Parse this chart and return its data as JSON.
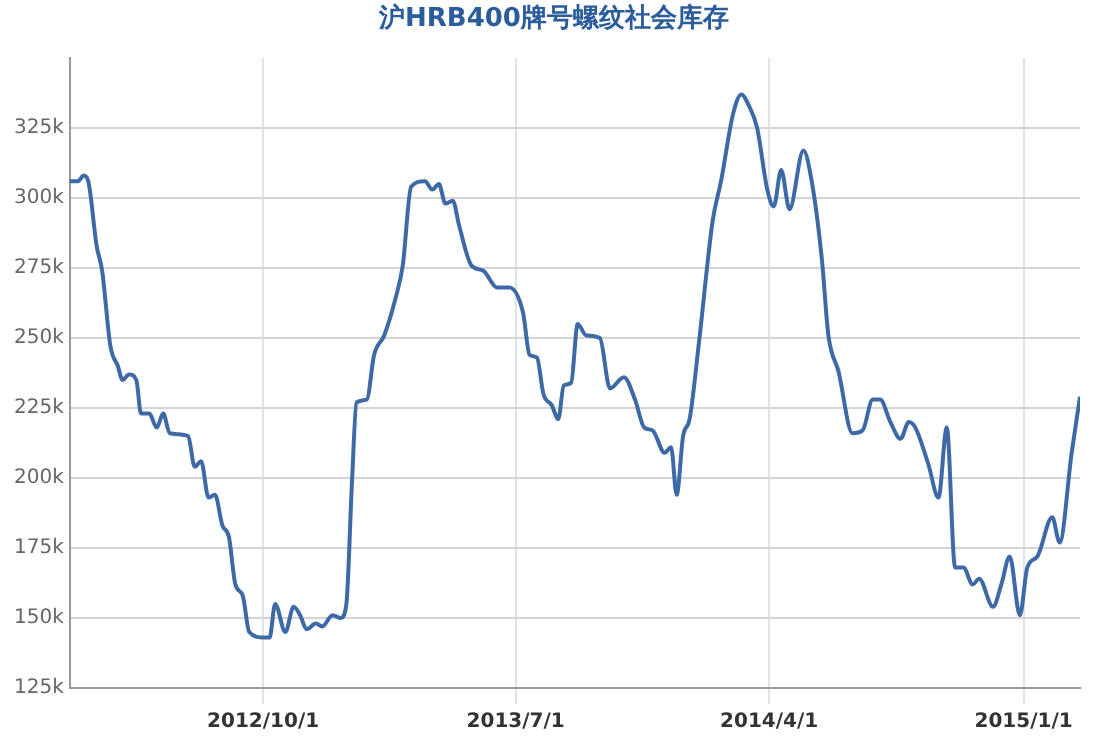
{
  "chart_data": {
    "type": "line",
    "title": "沪HRB400牌号螺纹社会库存",
    "x": [
      "2012-03-06",
      "2012-03-15",
      "2012-03-21",
      "2012-03-26",
      "2012-04-04",
      "2012-04-10",
      "2012-04-19",
      "2012-04-27",
      "2012-05-02",
      "2012-05-09",
      "2012-05-17",
      "2012-05-22",
      "2012-05-31",
      "2012-06-08",
      "2012-06-15",
      "2012-06-22",
      "2012-07-12",
      "2012-07-19",
      "2012-07-26",
      "2012-08-03",
      "2012-08-10",
      "2012-08-18",
      "2012-08-25",
      "2012-09-01",
      "2012-09-09",
      "2012-09-16",
      "2012-10-02",
      "2012-10-08",
      "2012-10-14",
      "2012-10-25",
      "2012-11-03",
      "2012-11-10",
      "2012-11-17",
      "2012-11-27",
      "2012-12-04",
      "2012-12-15",
      "2012-12-24",
      "2012-12-30",
      "2013-01-05",
      "2013-01-10",
      "2013-01-21",
      "2013-01-29",
      "2013-02-09",
      "2013-02-21",
      "2013-03-01",
      "2013-03-10",
      "2013-03-25",
      "2013-04-02",
      "2013-04-09",
      "2013-04-16",
      "2013-04-24",
      "2013-05-01",
      "2013-05-14",
      "2013-05-27",
      "2013-06-11",
      "2013-06-24",
      "2013-07-09",
      "2013-07-16",
      "2013-07-24",
      "2013-07-31",
      "2013-08-09",
      "2013-08-16",
      "2013-08-22",
      "2013-08-30",
      "2013-09-06",
      "2013-09-15",
      "2013-09-30",
      "2013-10-11",
      "2013-10-26",
      "2013-11-07",
      "2013-11-17",
      "2013-11-26",
      "2013-12-09",
      "2013-12-16",
      "2013-12-22",
      "2013-12-29",
      "2014-01-05",
      "2014-01-15",
      "2014-01-30",
      "2014-02-08",
      "2014-02-21",
      "2014-03-02",
      "2014-03-10",
      "2014-03-19",
      "2014-03-30",
      "2014-04-06",
      "2014-04-14",
      "2014-04-23",
      "2014-05-08",
      "2014-05-17",
      "2014-05-28",
      "2014-06-04",
      "2014-06-15",
      "2014-06-30",
      "2014-07-11",
      "2014-07-22",
      "2014-07-30",
      "2014-08-10",
      "2014-08-21",
      "2014-08-30",
      "2014-09-06",
      "2014-09-20",
      "2014-10-01",
      "2014-10-10",
      "2014-10-19",
      "2014-10-28",
      "2014-11-07",
      "2014-11-14",
      "2014-11-29",
      "2014-12-08",
      "2014-12-17",
      "2014-12-28",
      "2015-01-05",
      "2015-01-16",
      "2015-02-01",
      "2015-02-09",
      "2015-02-22",
      "2015-03-03"
    ],
    "series": [
      {
        "color": "#3d6aa6",
        "values": [
          306000,
          306000,
          308000,
          306000,
          283000,
          274000,
          247000,
          240000,
          235000,
          237000,
          235000,
          223000,
          223000,
          218000,
          223000,
          216000,
          215000,
          204000,
          206000,
          193000,
          194000,
          183000,
          179000,
          162000,
          158000,
          145000,
          143000,
          143000,
          155000,
          145000,
          154000,
          151000,
          146000,
          148000,
          147000,
          151000,
          150000,
          155000,
          198000,
          227000,
          228000,
          244000,
          251000,
          264000,
          276000,
          304000,
          306000,
          303000,
          305000,
          298000,
          299000,
          290000,
          276000,
          274000,
          268000,
          268000,
          259000,
          244000,
          243000,
          230000,
          226000,
          221000,
          233000,
          234000,
          255000,
          251000,
          250000,
          232000,
          236000,
          228000,
          218000,
          217000,
          209000,
          211000,
          194000,
          215000,
          221000,
          248000,
          292000,
          306000,
          330000,
          337000,
          333000,
          325000,
          303000,
          297000,
          310000,
          296000,
          317000,
          306000,
          278000,
          251000,
          238000,
          216000,
          217000,
          228000,
          228000,
          220000,
          214000,
          220000,
          218000,
          205000,
          193000,
          218000,
          168000,
          168000,
          162000,
          164000,
          154000,
          162000,
          172000,
          151000,
          168000,
          172000,
          186000,
          177000,
          209000,
          229000
        ]
      }
    ],
    "xlim": [
      "2012-03-06",
      "2015-03-03"
    ],
    "xticks": [
      {
        "value": "2012-10-01",
        "label": "2012/10/1"
      },
      {
        "value": "2013-07-01",
        "label": "2013/7/1"
      },
      {
        "value": "2014-04-01",
        "label": "2014/4/1"
      },
      {
        "value": "2015-01-01",
        "label": "2015/1/1"
      }
    ],
    "ylim": [
      125000,
      350000
    ],
    "yticks": [
      {
        "value": 125000,
        "label": "125k"
      },
      {
        "value": 150000,
        "label": "150k"
      },
      {
        "value": 175000,
        "label": "175k"
      },
      {
        "value": 200000,
        "label": "200k"
      },
      {
        "value": 225000,
        "label": "225k"
      },
      {
        "value": 250000,
        "label": "250k"
      },
      {
        "value": 275000,
        "label": "275k"
      },
      {
        "value": 300000,
        "label": "300k"
      },
      {
        "value": 325000,
        "label": "325k"
      }
    ],
    "grid": true,
    "legend": false,
    "marker": "none",
    "line_style": "solid"
  }
}
